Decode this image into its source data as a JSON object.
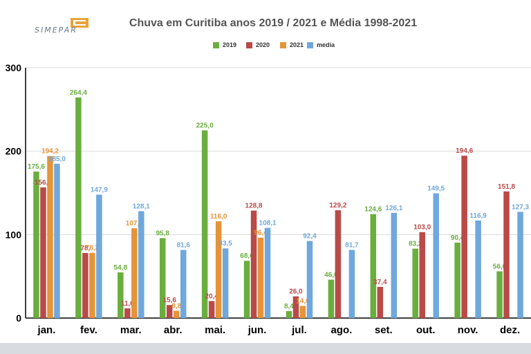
{
  "logo": {
    "text": "SIMEPAR"
  },
  "colors": {
    "s2019": "#6aae3e",
    "s2020": "#b94a48",
    "s2021": "#e5943a",
    "media": "#6fa8dc",
    "grid": "#d9d9d9",
    "axis": "#000000"
  },
  "chart_data": {
    "type": "bar",
    "title": "Chuva em Curitiba anos 2019 / 2021 e Média 1998-2021",
    "xlabel": "",
    "ylabel": "",
    "ylim": [
      0,
      300
    ],
    "yticks": [
      0,
      100,
      200,
      300
    ],
    "grid": true,
    "legend_position": "top",
    "categories": [
      "jan.",
      "fev.",
      "mar.",
      "abr.",
      "mai.",
      "jun.",
      "jul.",
      "ago.",
      "set.",
      "out.",
      "nov.",
      "dez."
    ],
    "series": [
      {
        "name": "2019",
        "color": "#6aae3e",
        "values": [
          175.6,
          264.4,
          54.8,
          95.8,
          225.0,
          68.6,
          8.4,
          46.0,
          124.6,
          83.2,
          90.4,
          56.0
        ],
        "labels": [
          "175,6",
          "264,4",
          "54,8",
          "95,8",
          "225,0",
          "68,6",
          "8,4",
          "46,0",
          "124,6",
          "83,2",
          "90,4",
          "56,0"
        ]
      },
      {
        "name": "2020",
        "color": "#b94a48",
        "values": [
          156.6,
          78.0,
          11.6,
          15.6,
          20.4,
          128.8,
          26.0,
          129.2,
          37.4,
          103.0,
          194.6,
          151.8
        ],
        "labels": [
          "156,6",
          "78,",
          "11,6",
          "15,6",
          "20,4",
          "128,8",
          "26,0",
          "129,2",
          "37,4",
          "103,0",
          "194,6",
          "151,8"
        ]
      },
      {
        "name": "2021",
        "color": "#e5943a",
        "values": [
          194.2,
          78.2,
          107.6,
          null,
          116.0,
          96.4,
          14.6,
          null,
          null,
          null,
          null,
          null
        ],
        "labels": [
          "194,2",
          "78,2",
          "107,6",
          "8,8",
          "116,0",
          "96,4",
          "14,6",
          "",
          "",
          "",
          "",
          ""
        ],
        "values_small": [
          null,
          null,
          null,
          8.8,
          null,
          null,
          null,
          null,
          null,
          null,
          null,
          null
        ]
      },
      {
        "name": "media",
        "color": "#6fa8dc",
        "values": [
          185.0,
          147.9,
          128.1,
          81.6,
          83.5,
          108.1,
          92.4,
          81.7,
          126.1,
          149.5,
          116.9,
          127.3
        ],
        "labels": [
          "185,0",
          "147,9",
          "128,1",
          "81,6",
          "83,5",
          "108,1",
          "92,4",
          "81,7",
          "126,1",
          "149,5",
          "116,9",
          "127,3"
        ]
      }
    ]
  }
}
